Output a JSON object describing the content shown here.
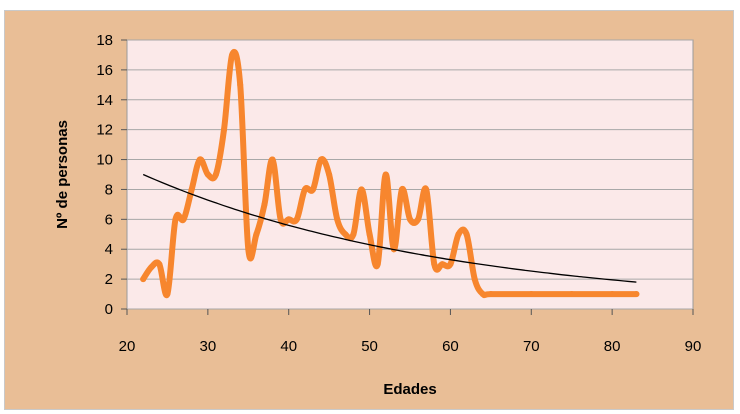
{
  "chart_data": {
    "type": "line",
    "title": "",
    "xlabel": "Edades",
    "ylabel": "Nº de personas",
    "xlim": [
      20,
      90
    ],
    "ylim": [
      0,
      18
    ],
    "x_ticks": [
      20,
      30,
      40,
      50,
      60,
      70,
      80,
      90
    ],
    "y_ticks": [
      0,
      2,
      4,
      6,
      8,
      10,
      12,
      14,
      16,
      18
    ],
    "grid": "horizontal",
    "legend": "none",
    "colors": {
      "frame": "#e9be96",
      "plot_area": "#fbe9e9",
      "series": "#f7862e",
      "trend": "#000000",
      "grid": "#a8a8a8"
    },
    "series": [
      {
        "kind": "data",
        "x": [
          22,
          23,
          24,
          25,
          26,
          27,
          28,
          29,
          30,
          31,
          32,
          33,
          34,
          35,
          36,
          37,
          38,
          39,
          40,
          41,
          42,
          43,
          44,
          45,
          46,
          47,
          48,
          49,
          50,
          51,
          52,
          53,
          54,
          55,
          56,
          57,
          58,
          59,
          60,
          61,
          62,
          63,
          64,
          65,
          70,
          75,
          80,
          83
        ],
        "y": [
          2,
          2.8,
          3,
          1,
          6,
          6,
          8,
          10,
          9,
          9,
          12,
          17,
          15,
          4,
          5,
          7,
          10,
          6,
          6,
          6,
          8,
          8,
          10,
          9,
          6,
          5,
          5,
          8,
          5,
          3,
          9,
          4,
          8,
          6,
          6,
          8,
          3,
          3,
          3,
          5,
          5,
          2,
          1,
          1,
          1,
          1,
          1,
          1
        ]
      },
      {
        "kind": "trend",
        "x": [
          22,
          83
        ],
        "y": [
          9,
          1.8
        ]
      }
    ]
  }
}
